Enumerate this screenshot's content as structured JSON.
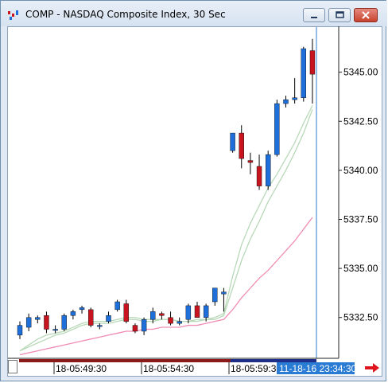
{
  "window": {
    "title": "COMP - NASDAQ Composite Index, 30 Sec",
    "buttons": [
      "minimize",
      "restore",
      "close"
    ]
  },
  "chart_data": {
    "type": "candlestick",
    "y_ticks": [
      "5345.00",
      "5342.50",
      "5340.00",
      "5337.50",
      "5335.00",
      "5332.50"
    ],
    "ylim": [
      5330.5,
      5347.3
    ],
    "x_ticks": [
      "18-05:49:30",
      "18-05:54:30",
      "18-05:59:30"
    ],
    "time_highlight": "11-18-16 23:34:30",
    "colors": {
      "up": "#1e6fd9",
      "down": "#c8141e",
      "ma_fast": "#b8d8b8",
      "ma_slow": "#f08cb4",
      "cursor": "#2a7bd4"
    },
    "candles": [
      {
        "o": 5331.6,
        "h": 5332.3,
        "l": 5331.4,
        "c": 5332.1
      },
      {
        "o": 5332.0,
        "h": 5332.7,
        "l": 5331.8,
        "c": 5332.5
      },
      {
        "o": 5332.4,
        "h": 5332.6,
        "l": 5332.2,
        "c": 5332.5
      },
      {
        "o": 5332.6,
        "h": 5332.8,
        "l": 5331.7,
        "c": 5331.9
      },
      {
        "o": 5331.9,
        "h": 5332.1,
        "l": 5331.7,
        "c": 5331.9
      },
      {
        "o": 5331.9,
        "h": 5332.7,
        "l": 5331.8,
        "c": 5332.6
      },
      {
        "o": 5332.6,
        "h": 5332.9,
        "l": 5332.4,
        "c": 5332.8
      },
      {
        "o": 5332.9,
        "h": 5333.1,
        "l": 5332.7,
        "c": 5333.0
      },
      {
        "o": 5332.9,
        "h": 5333.0,
        "l": 5332.0,
        "c": 5332.1
      },
      {
        "o": 5332.1,
        "h": 5332.2,
        "l": 5331.9,
        "c": 5332.1
      },
      {
        "o": 5332.3,
        "h": 5332.8,
        "l": 5332.2,
        "c": 5332.6
      },
      {
        "o": 5332.9,
        "h": 5333.4,
        "l": 5332.8,
        "c": 5333.3
      },
      {
        "o": 5333.2,
        "h": 5333.4,
        "l": 5332.2,
        "c": 5332.3
      },
      {
        "o": 5332.1,
        "h": 5332.2,
        "l": 5331.7,
        "c": 5331.8
      },
      {
        "o": 5331.8,
        "h": 5332.5,
        "l": 5331.6,
        "c": 5332.4
      },
      {
        "o": 5332.4,
        "h": 5333.0,
        "l": 5332.2,
        "c": 5332.8
      },
      {
        "o": 5332.7,
        "h": 5332.8,
        "l": 5332.4,
        "c": 5332.6
      },
      {
        "o": 5332.5,
        "h": 5332.8,
        "l": 5332.1,
        "c": 5332.2
      },
      {
        "o": 5332.2,
        "h": 5332.5,
        "l": 5332.1,
        "c": 5332.3
      },
      {
        "o": 5332.4,
        "h": 5333.2,
        "l": 5332.2,
        "c": 5333.1
      },
      {
        "o": 5333.1,
        "h": 5333.3,
        "l": 5332.5,
        "c": 5332.5
      },
      {
        "o": 5332.5,
        "h": 5333.2,
        "l": 5332.3,
        "c": 5333.1
      },
      {
        "o": 5333.3,
        "h": 5334.0,
        "l": 5333.1,
        "c": 5334.0
      },
      {
        "o": 5333.7,
        "h": 5334.0,
        "l": 5332.8,
        "c": 5333.8
      },
      {
        "o": 5341.0,
        "h": 5341.9,
        "l": 5340.9,
        "c": 5341.9
      },
      {
        "o": 5341.9,
        "h": 5342.3,
        "l": 5340.1,
        "c": 5340.6
      },
      {
        "o": 5340.5,
        "h": 5340.9,
        "l": 5339.8,
        "c": 5340.4
      },
      {
        "o": 5340.2,
        "h": 5340.8,
        "l": 5339.0,
        "c": 5339.2
      },
      {
        "o": 5339.2,
        "h": 5341.0,
        "l": 5339.0,
        "c": 5340.8
      },
      {
        "o": 5340.8,
        "h": 5343.6,
        "l": 5340.7,
        "c": 5343.4
      },
      {
        "o": 5343.4,
        "h": 5343.8,
        "l": 5343.2,
        "c": 5343.6
      },
      {
        "o": 5343.6,
        "h": 5344.7,
        "l": 5343.4,
        "c": 5343.7
      },
      {
        "o": 5343.7,
        "h": 5346.3,
        "l": 5343.5,
        "c": 5346.2
      },
      {
        "o": 5346.1,
        "h": 5346.7,
        "l": 5343.4,
        "c": 5344.9
      }
    ],
    "ma_fast": [
      5330.8,
      5331.1,
      5331.4,
      5331.6,
      5331.7,
      5331.8,
      5332.0,
      5332.2,
      5332.3,
      5332.3,
      5332.3,
      5332.4,
      5332.5,
      5332.5,
      5332.4,
      5332.4,
      5332.4,
      5332.4,
      5332.3,
      5332.3,
      5332.4,
      5332.4,
      5332.5,
      5332.7,
      5334.6,
      5336.2,
      5337.3,
      5338.2,
      5339.1,
      5339.8,
      5340.6,
      5341.4,
      5342.4,
      5343.3
    ],
    "ma_fast2": [
      5330.8,
      5331.0,
      5331.2,
      5331.4,
      5331.6,
      5331.7,
      5331.9,
      5332.1,
      5332.2,
      5332.2,
      5332.2,
      5332.3,
      5332.4,
      5332.4,
      5332.3,
      5332.3,
      5332.4,
      5332.4,
      5332.3,
      5332.3,
      5332.3,
      5332.4,
      5332.4,
      5332.6,
      5334.0,
      5335.4,
      5336.5,
      5337.4,
      5338.4,
      5339.2,
      5340.0,
      5340.9,
      5341.9,
      5343.1
    ],
    "ma_slow": [
      5330.6,
      5330.7,
      5330.8,
      5330.9,
      5331.0,
      5331.1,
      5331.2,
      5331.3,
      5331.4,
      5331.5,
      5331.6,
      5331.7,
      5331.8,
      5331.8,
      5331.9,
      5331.9,
      5332.0,
      5332.0,
      5332.0,
      5332.1,
      5332.1,
      5332.2,
      5332.3,
      5332.4,
      5332.9,
      5333.5,
      5334.0,
      5334.5,
      5334.9,
      5335.4,
      5335.9,
      5336.4,
      5337.0,
      5337.6
    ]
  }
}
